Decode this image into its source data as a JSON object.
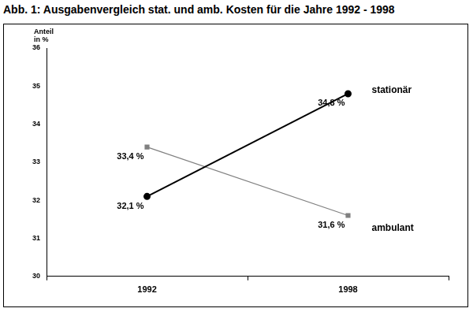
{
  "chart_data": {
    "type": "line",
    "title": "Abb. 1: Ausgabenvergleich stat. und amb. Kosten für die Jahre 1992 - 1998",
    "y_label": "Anteil in %",
    "categories": [
      "1992",
      "1998"
    ],
    "series": [
      {
        "name": "stationär",
        "color": "#000000",
        "marker": "circle",
        "values": [
          32.1,
          34.8
        ],
        "value_labels": [
          "32,1 %",
          "34,8 %"
        ]
      },
      {
        "name": "ambulant",
        "color": "#808080",
        "marker": "square",
        "values": [
          33.4,
          31.6
        ],
        "value_labels": [
          "33,4 %",
          "31,6 %"
        ]
      }
    ],
    "ylim": [
      30,
      36
    ],
    "yticks": [
      30,
      31,
      32,
      33,
      34,
      35,
      36
    ],
    "grid": false,
    "data_labels": true
  }
}
